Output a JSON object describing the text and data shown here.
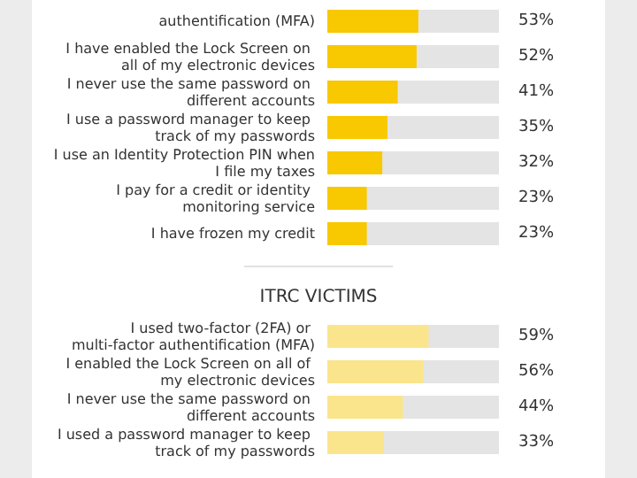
{
  "chart_data": [
    {
      "type": "bar",
      "orientation": "horizontal",
      "categories": [
        "authentification (MFA)",
        "I have enabled the Lock Screen on all of my electronic devices",
        "I never use the same password on different accounts",
        "I use a password manager to keep track of my passwords",
        "I use an Identity Protection PIN when I file my taxes",
        "I pay for a credit or identity monitoring service",
        "I have frozen my credit"
      ],
      "values": [
        53,
        52,
        41,
        35,
        32,
        23,
        23
      ],
      "value_labels": [
        "53%",
        "52%",
        "41%",
        "35%",
        "32%",
        "23%",
        "23%"
      ],
      "color": "#f8c800",
      "xlim": [
        0,
        100
      ],
      "tick_labels": "y"
    },
    {
      "type": "bar",
      "orientation": "horizontal",
      "title": "ITRC VICTIMS",
      "categories": [
        "I used two-factor (2FA) or multi-factor authentification (MFA)",
        "I enabled the Lock Screen on all of my electronic devices",
        "I never use the same password on different accounts",
        "I used a password manager to keep track of my passwords"
      ],
      "values": [
        59,
        56,
        44,
        33
      ],
      "value_labels": [
        "59%",
        "56%",
        "44%",
        "33%"
      ],
      "color": "#fbe58c",
      "xlim": [
        0,
        100
      ],
      "tick_labels": "y"
    }
  ]
}
